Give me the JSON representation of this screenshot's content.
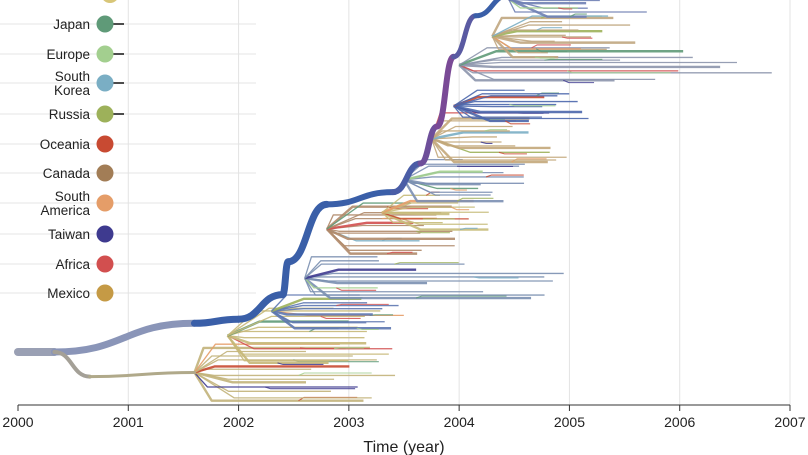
{
  "chart_data": {
    "type": "phylogenetic-tree",
    "xlabel": "Time (year)",
    "xlim": [
      2000,
      2007
    ],
    "x_ticks": [
      "2000",
      "2001",
      "2002",
      "2003",
      "2004",
      "2005",
      "2006",
      "2007"
    ],
    "grid": "vertical",
    "legend_position": "left",
    "legend": [
      {
        "label": "Japan",
        "color": "#5f9a78",
        "lines": [
          "Japan"
        ]
      },
      {
        "label": "Europe",
        "color": "#a3cf8f",
        "lines": [
          "Europe"
        ]
      },
      {
        "label": "South Korea",
        "color": "#7aaec4",
        "lines": [
          "South",
          "Korea"
        ]
      },
      {
        "label": "Russia",
        "color": "#9db15a",
        "lines": [
          "Russia"
        ]
      },
      {
        "label": "Oceania",
        "color": "#c84a32",
        "lines": [
          "Oceania"
        ]
      },
      {
        "label": "Canada",
        "color": "#a27d56",
        "lines": [
          "Canada"
        ]
      },
      {
        "label": "South America",
        "color": "#e59d68",
        "lines": [
          "South",
          "America"
        ]
      },
      {
        "label": "Taiwan",
        "color": "#3e3a8f",
        "lines": [
          "Taiwan"
        ]
      },
      {
        "label": "Africa",
        "color": "#d24f4f",
        "lines": [
          "Africa"
        ]
      },
      {
        "label": "Mexico",
        "color": "#c59a45",
        "lines": [
          "Mexico"
        ]
      }
    ],
    "trunk": [
      {
        "from": [
          2000.0,
          0.0
        ],
        "to": [
          2000.33,
          0.0
        ],
        "color": "#9aa0b4",
        "weight": 8
      },
      {
        "from": [
          2000.33,
          0.0
        ],
        "to": [
          2001.6,
          7.0
        ],
        "color": "#8a95b8",
        "weight": 7
      },
      {
        "from": [
          2000.33,
          0.0
        ],
        "to": [
          2000.65,
          -6.0
        ],
        "color": "#a4a097",
        "weight": 4
      },
      {
        "from": [
          2000.65,
          -6.0
        ],
        "to": [
          2001.6,
          -5.0
        ],
        "color": "#b0a98a",
        "weight": 3
      },
      {
        "from": [
          2001.6,
          7.0
        ],
        "to": [
          2002.0,
          8.0
        ],
        "color": "#3a5fa8",
        "weight": 7
      },
      {
        "from": [
          2002.0,
          8.0
        ],
        "to": [
          2002.4,
          14.0
        ],
        "color": "#3a5fa8",
        "weight": 7
      },
      {
        "from": [
          2002.4,
          14.0
        ],
        "to": [
          2002.45,
          22.0
        ],
        "color": "#3a5fa8",
        "weight": 7
      },
      {
        "from": [
          2002.45,
          22.0
        ],
        "to": [
          2002.8,
          36.0
        ],
        "color": "#3a5fa8",
        "weight": 7
      },
      {
        "from": [
          2002.8,
          36.0
        ],
        "to": [
          2003.4,
          39.0
        ],
        "color": "#3a5fa8",
        "weight": 6
      },
      {
        "from": [
          2003.4,
          39.0
        ],
        "to": [
          2003.65,
          46.0
        ],
        "color": "#4a5da6",
        "weight": 6
      },
      {
        "from": [
          2003.65,
          46.0
        ],
        "to": [
          2003.8,
          55.0
        ],
        "color": "#6e4f9a",
        "weight": 6
      },
      {
        "from": [
          2003.8,
          55.0
        ],
        "to": [
          2003.95,
          72.0
        ],
        "color": "#7a4a96",
        "weight": 6
      },
      {
        "from": [
          2003.95,
          72.0
        ],
        "to": [
          2004.15,
          82.0
        ],
        "color": "#5a5aa2",
        "weight": 5
      },
      {
        "from": [
          2004.15,
          82.0
        ],
        "to": [
          2004.45,
          87.0
        ],
        "color": "#3a5fa8",
        "weight": 5
      }
    ],
    "clades": [
      {
        "origin": [
          2001.6,
          -5.0
        ],
        "color": "#c2b27a",
        "spread": 7,
        "tip_range": [
          2002.5,
          2003.5
        ],
        "count": 14
      },
      {
        "origin": [
          2001.9,
          4.0
        ],
        "color": "#c7b878",
        "spread": 7,
        "tip_range": [
          2002.8,
          2003.5
        ],
        "count": 12
      },
      {
        "origin": [
          2002.3,
          10.0
        ],
        "color": "#5d77b0",
        "spread": 4,
        "tip_range": [
          2002.9,
          2003.5
        ],
        "count": 10
      },
      {
        "origin": [
          2002.6,
          18.0
        ],
        "color": "#7a8fb0",
        "spread": 5,
        "tip_range": [
          2003.0,
          2005.0
        ],
        "count": 12
      },
      {
        "origin": [
          2002.8,
          30.0
        ],
        "color": "#b08a6a",
        "spread": 6,
        "tip_range": [
          2003.4,
          2004.0
        ],
        "count": 14
      },
      {
        "origin": [
          2003.3,
          34.0
        ],
        "color": "#c6bb7a",
        "spread": 4,
        "tip_range": [
          2003.8,
          2004.4
        ],
        "count": 10
      },
      {
        "origin": [
          2003.5,
          42.0
        ],
        "color": "#7b8fb2",
        "spread": 5,
        "tip_range": [
          2004.0,
          2004.6
        ],
        "count": 12
      },
      {
        "origin": [
          2003.75,
          52.0
        ],
        "color": "#c3a77a",
        "spread": 6,
        "tip_range": [
          2004.3,
          2005.1
        ],
        "count": 14
      },
      {
        "origin": [
          2003.95,
          60.0
        ],
        "color": "#4a66ac",
        "spread": 4,
        "tip_range": [
          2004.5,
          2005.2
        ],
        "count": 12
      },
      {
        "origin": [
          2004.0,
          70.0
        ],
        "color": "#8c95ac",
        "spread": 4,
        "tip_range": [
          2005.3,
          2006.9
        ],
        "count": 10
      },
      {
        "origin": [
          2004.3,
          77.0
        ],
        "color": "#c0a680",
        "spread": 5,
        "tip_range": [
          2004.8,
          2005.7
        ],
        "count": 14
      },
      {
        "origin": [
          2004.45,
          86.0
        ],
        "color": "#6f80b4",
        "spread": 4,
        "tip_range": [
          2004.9,
          2005.8
        ],
        "count": 12
      }
    ]
  }
}
